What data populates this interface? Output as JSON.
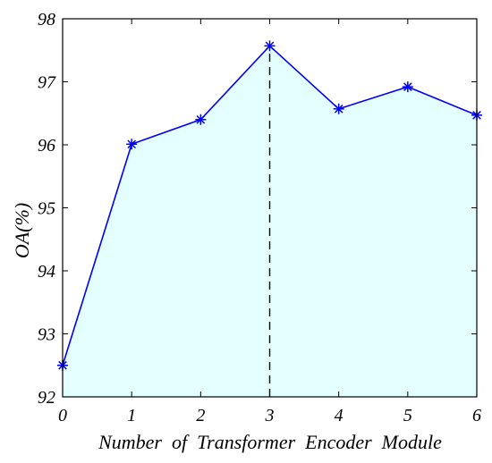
{
  "chart_data": {
    "type": "area",
    "title": "",
    "xlabel": "Number  of  Transformer  Encoder  Module",
    "ylabel": "OA(%)",
    "x": [
      0,
      1,
      2,
      3,
      4,
      5,
      6
    ],
    "xlim": [
      0,
      6
    ],
    "ylim": [
      92,
      98
    ],
    "xticks": [
      "0",
      "1",
      "2",
      "3",
      "4",
      "5",
      "6"
    ],
    "yticks": [
      "92",
      "93",
      "94",
      "95",
      "96",
      "97",
      "98"
    ],
    "series": [
      {
        "values": [
          92.5,
          96.01,
          96.4,
          97.57,
          96.57,
          96.92,
          96.47
        ]
      }
    ],
    "highlight_x": 3,
    "marker": "asterisk",
    "line_color": "#0000ff",
    "fill_color": "#e3ffff",
    "grid": false,
    "legend": "none"
  }
}
